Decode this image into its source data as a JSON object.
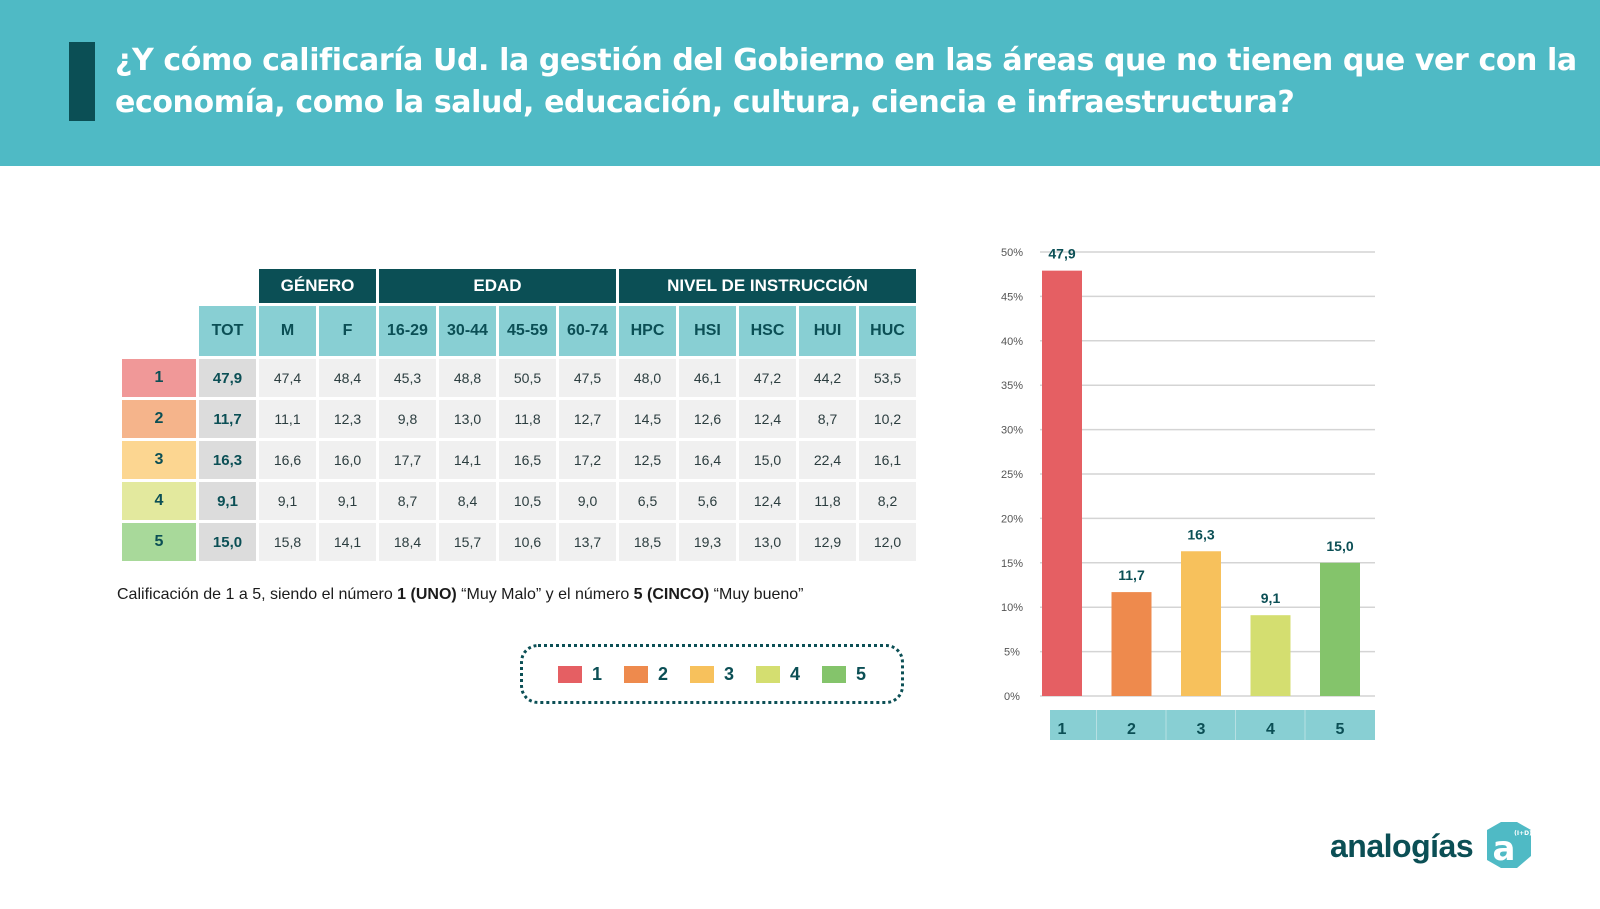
{
  "header": {
    "title": "¿Y cómo calificaría Ud. la gestión del Gobierno en las áreas que no tienen que ver con la economía, como la salud, educación, cultura, ciencia e infraestructura?"
  },
  "table": {
    "groups": [
      "GÉNERO",
      "EDAD",
      "NIVEL DE INSTRUCCIÓN"
    ],
    "columns": [
      "TOT",
      "M",
      "F",
      "16-29",
      "30-44",
      "45-59",
      "60-74",
      "HPC",
      "HSI",
      "HSC",
      "HUI",
      "HUC"
    ],
    "rows": [
      {
        "label": "1",
        "color": "#f09898",
        "values": [
          "47,9",
          "47,4",
          "48,4",
          "45,3",
          "48,8",
          "50,5",
          "47,5",
          "48,0",
          "46,1",
          "47,2",
          "44,2",
          "53,5"
        ]
      },
      {
        "label": "2",
        "color": "#f5b48b",
        "values": [
          "11,7",
          "11,1",
          "12,3",
          "9,8",
          "13,0",
          "11,8",
          "12,7",
          "14,5",
          "12,6",
          "12,4",
          "8,7",
          "10,2"
        ]
      },
      {
        "label": "3",
        "color": "#fcd691",
        "values": [
          "16,3",
          "16,6",
          "16,0",
          "17,7",
          "14,1",
          "16,5",
          "17,2",
          "12,5",
          "16,4",
          "15,0",
          "22,4",
          "16,1"
        ]
      },
      {
        "label": "4",
        "color": "#e3e99e",
        "values": [
          "9,1",
          "9,1",
          "9,1",
          "8,7",
          "8,4",
          "10,5",
          "9,0",
          "6,5",
          "5,6",
          "12,4",
          "11,8",
          "8,2"
        ]
      },
      {
        "label": "5",
        "color": "#a8d99a",
        "values": [
          "15,0",
          "15,8",
          "14,1",
          "18,4",
          "15,7",
          "10,6",
          "13,7",
          "18,5",
          "19,3",
          "13,0",
          "12,9",
          "12,0"
        ]
      }
    ]
  },
  "note": {
    "part1": "Calificación de 1 a 5, siendo el número ",
    "bold1": "1 (UNO)",
    "part2": " “Muy Malo” y el número ",
    "bold2": "5 (CINCO)",
    "part3": " “Muy bueno”"
  },
  "legend": [
    {
      "label": "1",
      "color": "#e55f63"
    },
    {
      "label": "2",
      "color": "#ee8a4d"
    },
    {
      "label": "3",
      "color": "#f7c15c"
    },
    {
      "label": "4",
      "color": "#d4de70"
    },
    {
      "label": "5",
      "color": "#84c46b"
    }
  ],
  "chart_data": {
    "type": "bar",
    "title": "",
    "xlabel": "",
    "ylabel": "",
    "categories": [
      "1",
      "2",
      "3",
      "4",
      "5"
    ],
    "values": [
      47.9,
      11.7,
      16.3,
      9.1,
      15.0
    ],
    "data_labels": [
      "47,9",
      "11,7",
      "16,3",
      "9,1",
      "15,0"
    ],
    "colors": [
      "#e55f63",
      "#ee8a4d",
      "#f7c15c",
      "#d4de70",
      "#84c46b"
    ],
    "ylim": [
      0,
      50
    ],
    "yticks": [
      0,
      5,
      10,
      15,
      20,
      25,
      30,
      35,
      40,
      45,
      50
    ],
    "ytick_labels": [
      "0%",
      "5%",
      "10%",
      "15%",
      "20%",
      "25%",
      "30%",
      "35%",
      "40%",
      "45%",
      "50%"
    ],
    "grid": true,
    "legend": "none"
  },
  "logo": {
    "text": "analogías",
    "mark_letter": "a",
    "mark_sup": "(I+D)"
  }
}
